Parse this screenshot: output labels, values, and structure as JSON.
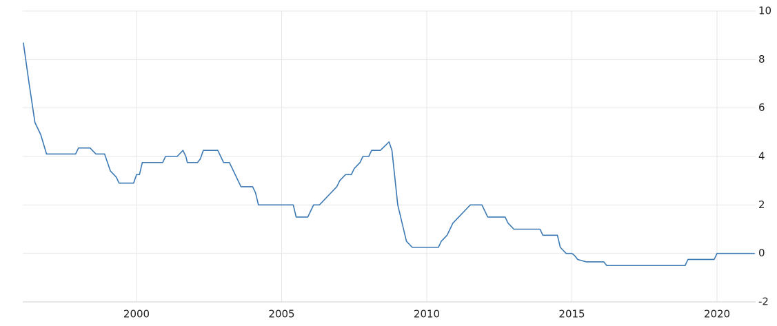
{
  "chart_data": {
    "type": "line",
    "x": [
      1996.1,
      1996.3,
      1996.5,
      1996.7,
      1996.9,
      1997.9,
      1998.0,
      1998.4,
      1998.6,
      1998.9,
      1999.1,
      1999.3,
      1999.4,
      1999.9,
      2000.0,
      2000.1,
      2000.2,
      2000.9,
      2001.0,
      2001.4,
      2001.6,
      2001.7,
      2001.75,
      2002.1,
      2002.2,
      2002.3,
      2002.8,
      2002.9,
      2003.0,
      2003.2,
      2003.3,
      2003.5,
      2003.6,
      2004.0,
      2004.1,
      2004.2,
      2005.4,
      2005.5,
      2005.9,
      2006.0,
      2006.1,
      2006.3,
      2006.5,
      2006.7,
      2006.9,
      2007.0,
      2007.2,
      2007.4,
      2007.5,
      2007.7,
      2007.8,
      2008.0,
      2008.1,
      2008.4,
      2008.7,
      2008.8,
      2009.0,
      2009.2,
      2009.3,
      2009.5,
      2010.4,
      2010.5,
      2010.7,
      2010.8,
      2010.9,
      2011.1,
      2011.3,
      2011.5,
      2011.9,
      2012.0,
      2012.1,
      2012.7,
      2012.8,
      2013.0,
      2013.9,
      2014.0,
      2014.5,
      2014.6,
      2014.8,
      2015.0,
      2015.1,
      2015.2,
      2015.5,
      2016.1,
      2016.2,
      2018.9,
      2019.0,
      2019.9,
      2020.0,
      2021.3
    ],
    "series": [
      {
        "color": "#3a78b4",
        "values": [
          8.7,
          7.0,
          5.4,
          4.9,
          4.1,
          4.1,
          4.35,
          4.35,
          4.1,
          4.1,
          3.4,
          3.15,
          2.9,
          2.9,
          3.25,
          3.25,
          3.75,
          3.75,
          4.0,
          4.0,
          4.25,
          4.0,
          3.75,
          3.75,
          3.9,
          4.25,
          4.25,
          4.0,
          3.75,
          3.75,
          3.5,
          3.0,
          2.75,
          2.75,
          2.5,
          2.0,
          2.0,
          1.5,
          1.5,
          1.75,
          2.0,
          2.0,
          2.25,
          2.5,
          2.75,
          3.0,
          3.25,
          3.25,
          3.5,
          3.75,
          4.0,
          4.0,
          4.25,
          4.25,
          4.6,
          4.25,
          2.0,
          1.0,
          0.5,
          0.25,
          0.25,
          0.5,
          0.75,
          1.0,
          1.25,
          1.5,
          1.75,
          2.0,
          2.0,
          1.75,
          1.5,
          1.5,
          1.25,
          1.0,
          1.0,
          0.75,
          0.75,
          0.25,
          0.0,
          0.0,
          -0.1,
          -0.25,
          -0.35,
          -0.35,
          -0.5,
          -0.5,
          -0.25,
          -0.25,
          0.0,
          0.0
        ]
      }
    ],
    "xlim": [
      1996.08,
      2021.33
    ],
    "xticks": [
      2000,
      2005,
      2010,
      2015,
      2020
    ],
    "ylim": [
      -2,
      10
    ],
    "yticks": [
      -2,
      0,
      2,
      4,
      6,
      8,
      10
    ],
    "grid": true
  }
}
